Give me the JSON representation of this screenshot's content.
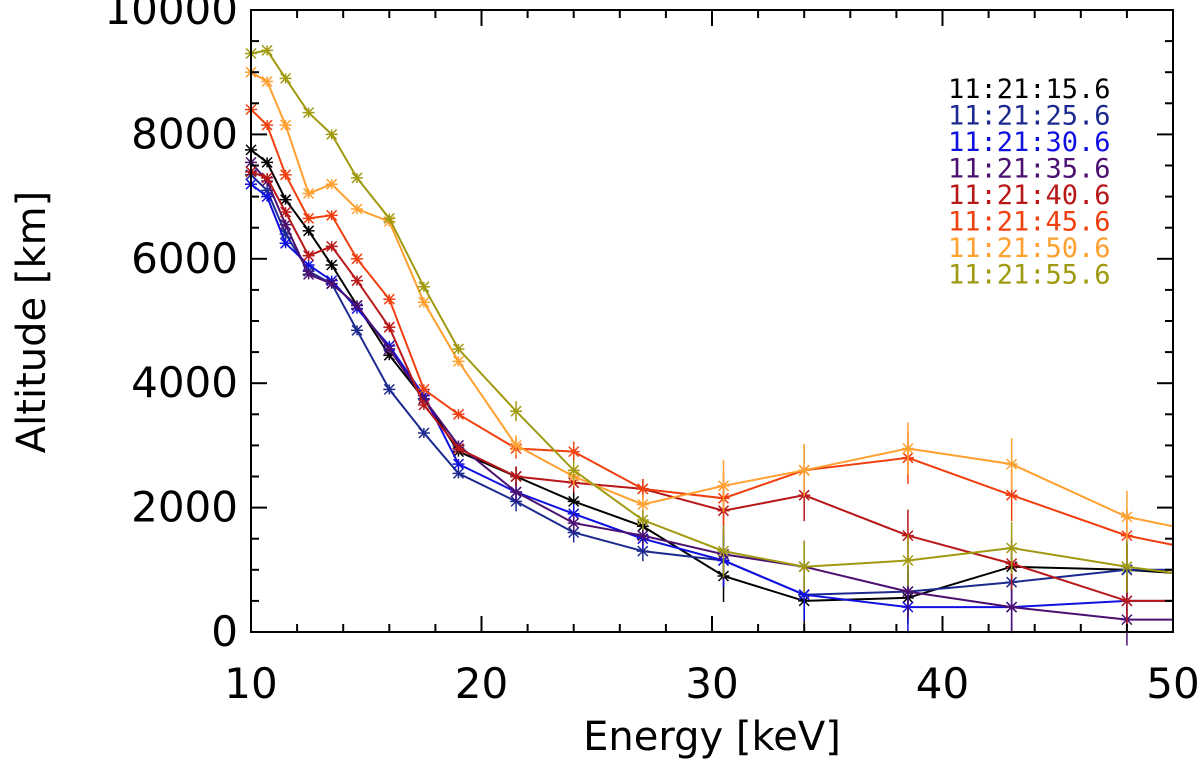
{
  "chart_data": {
    "type": "line",
    "title": "",
    "xlabel": "Energy [keV]",
    "ylabel": "Altitude [km]",
    "xlim": [
      10,
      50
    ],
    "ylim": [
      0,
      10000
    ],
    "xticks": [
      10,
      20,
      30,
      40,
      50
    ],
    "yticks": [
      0,
      2000,
      4000,
      6000,
      8000,
      10000
    ],
    "xtick_labels": [
      "10",
      "20",
      "30",
      "40",
      "50"
    ],
    "ytick_labels": [
      "0",
      "2000",
      "4000",
      "6000",
      "8000",
      "10000"
    ],
    "grid": false,
    "legend_position": "top-right",
    "x": [
      10,
      10.7,
      11.5,
      12.5,
      13.5,
      14.6,
      16,
      17.5,
      19,
      21.5,
      24,
      27,
      30.5,
      34,
      38.5,
      43,
      48,
      50
    ],
    "series": [
      {
        "name": "11:21:15.6",
        "color": "#000000",
        "values": [
          7750,
          7550,
          6950,
          6450,
          5900,
          5250,
          4450,
          3750,
          2900,
          2500,
          2100,
          1700,
          900,
          500,
          550,
          1050,
          1000,
          950
        ]
      },
      {
        "name": "11:21:25.6",
        "color": "#1c2a8f",
        "values": [
          7350,
          7100,
          6400,
          5800,
          5600,
          4850,
          3900,
          3200,
          2550,
          2100,
          1600,
          1300,
          1150,
          600,
          650,
          800,
          1000,
          1000
        ]
      },
      {
        "name": "11:21:30.6",
        "color": "#1010e0",
        "values": [
          7200,
          7000,
          6250,
          5900,
          5650,
          5200,
          4600,
          3800,
          2700,
          2250,
          1900,
          1500,
          1150,
          600,
          400,
          400,
          500,
          500
        ]
      },
      {
        "name": "11:21:35.6",
        "color": "#4c1070",
        "values": [
          7550,
          7250,
          6550,
          5750,
          5600,
          5250,
          4550,
          3750,
          3000,
          2250,
          1750,
          1550,
          1250,
          1050,
          650,
          400,
          200,
          200
        ]
      },
      {
        "name": "11:21:40.6",
        "color": "#b81818",
        "values": [
          7400,
          7300,
          6750,
          6050,
          6200,
          5650,
          4900,
          3650,
          2950,
          2500,
          2400,
          2300,
          1950,
          2200,
          1550,
          1100,
          500,
          500
        ]
      },
      {
        "name": "11:21:45.6",
        "color": "#f04010",
        "values": [
          8400,
          8150,
          7350,
          6650,
          6700,
          6000,
          5350,
          3900,
          3500,
          2950,
          2900,
          2300,
          2150,
          2600,
          2800,
          2200,
          1550,
          1400
        ]
      },
      {
        "name": "11:21:50.6",
        "color": "#ffa030",
        "values": [
          9000,
          8850,
          8150,
          7050,
          7200,
          6800,
          6600,
          5300,
          4350,
          3000,
          2500,
          2050,
          2350,
          2600,
          2950,
          2700,
          1850,
          1700
        ]
      },
      {
        "name": "11:21:55.6",
        "color": "#a09a10",
        "values": [
          9300,
          9350,
          8900,
          8350,
          8000,
          7300,
          6650,
          5550,
          4550,
          3550,
          2600,
          1800,
          1300,
          1050,
          1150,
          1350,
          1050,
          950
        ]
      }
    ]
  }
}
